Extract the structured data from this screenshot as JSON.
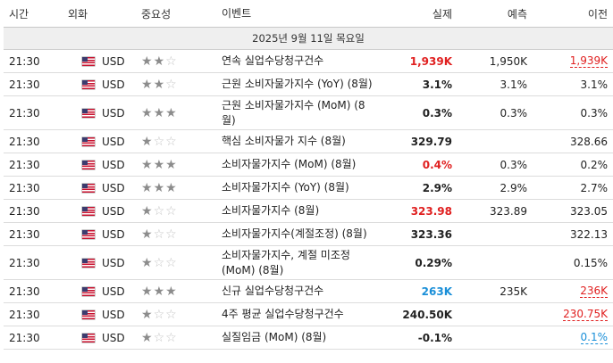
{
  "header": {
    "time": "시간",
    "currency": "외화",
    "importance": "중요성",
    "event": "이벤트",
    "actual": "실제",
    "forecast": "예측",
    "previous": "이전"
  },
  "date_label": "2025년 9월 11일 목요일",
  "colors": {
    "red": "#e02020",
    "blue": "#1a8fd8"
  },
  "rows": [
    {
      "time": "21:30",
      "currency": "USD",
      "stars": 2,
      "event": "연속 실업수당청구건수",
      "actual": "1,939K",
      "actual_style": "red",
      "forecast": "1,950K",
      "previous": "1,939K",
      "previous_style": "dashed-red",
      "tall": false
    },
    {
      "time": "21:30",
      "currency": "USD",
      "stars": 2,
      "event": "근원 소비자물가지수 (YoY) (8월)",
      "actual": "3.1%",
      "actual_style": "",
      "forecast": "3.1%",
      "previous": "3.1%",
      "previous_style": "",
      "tall": false
    },
    {
      "time": "21:30",
      "currency": "USD",
      "stars": 3,
      "event": "근원 소비자물가지수 (MoM) (8월)",
      "actual": "0.3%",
      "actual_style": "",
      "forecast": "0.3%",
      "previous": "0.3%",
      "previous_style": "",
      "tall": true
    },
    {
      "time": "21:30",
      "currency": "USD",
      "stars": 1,
      "event": "핵심 소비자물가 지수 (8월)",
      "actual": "329.79",
      "actual_style": "",
      "forecast": "",
      "previous": "328.66",
      "previous_style": "",
      "tall": false
    },
    {
      "time": "21:30",
      "currency": "USD",
      "stars": 3,
      "event": "소비자물가지수 (MoM) (8월)",
      "actual": "0.4%",
      "actual_style": "red",
      "forecast": "0.3%",
      "previous": "0.2%",
      "previous_style": "",
      "tall": false
    },
    {
      "time": "21:30",
      "currency": "USD",
      "stars": 3,
      "event": "소비자물가지수 (YoY) (8월)",
      "actual": "2.9%",
      "actual_style": "",
      "forecast": "2.9%",
      "previous": "2.7%",
      "previous_style": "",
      "tall": false
    },
    {
      "time": "21:30",
      "currency": "USD",
      "stars": 1,
      "event": "소비자물가지수 (8월)",
      "actual": "323.98",
      "actual_style": "red",
      "forecast": "323.89",
      "previous": "323.05",
      "previous_style": "",
      "tall": false
    },
    {
      "time": "21:30",
      "currency": "USD",
      "stars": 1,
      "event": "소비자물가지수(계절조정) (8월)",
      "actual": "323.36",
      "actual_style": "",
      "forecast": "",
      "previous": "322.13",
      "previous_style": "",
      "tall": false
    },
    {
      "time": "21:30",
      "currency": "USD",
      "stars": 1,
      "event": "소비자물가지수, 계절 미조정 (MoM) (8월)",
      "actual": "0.29%",
      "actual_style": "",
      "forecast": "",
      "previous": "0.15%",
      "previous_style": "",
      "tall": true
    },
    {
      "time": "21:30",
      "currency": "USD",
      "stars": 3,
      "event": "신규 실업수당청구건수",
      "actual": "263K",
      "actual_style": "blue",
      "forecast": "235K",
      "previous": "236K",
      "previous_style": "dashed-red",
      "tall": false
    },
    {
      "time": "21:30",
      "currency": "USD",
      "stars": 1,
      "event": "4주 평균 실업수당청구건수",
      "actual": "240.50K",
      "actual_style": "",
      "forecast": "",
      "previous": "230.75K",
      "previous_style": "dashed-red",
      "tall": false
    },
    {
      "time": "21:30",
      "currency": "USD",
      "stars": 1,
      "event": "실질임금 (MoM) (8월)",
      "actual": "-0.1%",
      "actual_style": "",
      "forecast": "",
      "previous": "0.1%",
      "previous_style": "dashed-blue",
      "tall": false
    }
  ]
}
